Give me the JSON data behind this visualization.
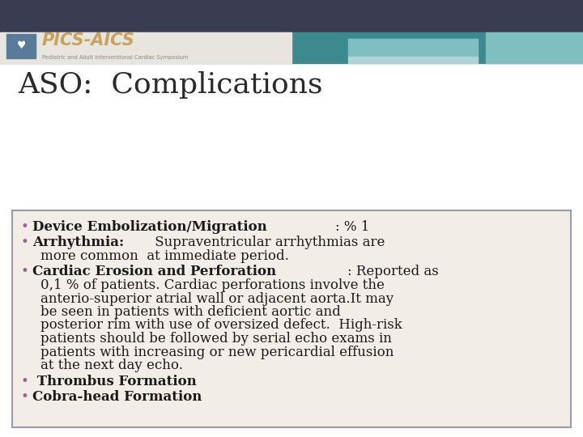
{
  "title": "ASO:  Complications",
  "title_fontsize": 26,
  "title_color": "#2a2a2a",
  "title_font": "serif",
  "bg_color": "#ffffff",
  "header_dark_color": "#3a3d52",
  "header_teal_color": "#3d8a8e",
  "header_light_teal": "#7fbfc2",
  "header_pale": "#b0d4d6",
  "box_bg_color": "#f3ede8",
  "box_border_color": "#9a9aaa",
  "bullet_color": "#1a1a1a",
  "bullet_dot_color": "#a060a0",
  "bullet_items": [
    {
      "bold_part": "Device Embolization/Migration",
      "normal_part": ": % 1",
      "continuation": []
    },
    {
      "bold_part": "Arrhythmia:",
      "normal_part": " Supraventricular arrhythmias are",
      "continuation": [
        "more common  at immediate period."
      ]
    },
    {
      "bold_part": "Cardiac Erosion and Perforation",
      "normal_part": ": Reported as",
      "continuation": [
        "0,1 % of patients. Cardiac perforations involve the",
        "anterio-superior atrial wall or adjacent aorta.It may",
        "be seen in patients with deficient aortic and",
        "posterior rim with use of oversized defect.  High-risk",
        "patients should be followed by serial echo exams in",
        "patients with increasing or new pericardial effusion",
        "at the next day echo."
      ]
    },
    {
      "bold_part": " Thrombus Formation",
      "normal_part": "",
      "continuation": []
    },
    {
      "bold_part": "Cobra-head Formation",
      "normal_part": "",
      "continuation": []
    }
  ],
  "font_size_bullet": 12,
  "logo_text": "PICS-AICS",
  "logo_sub": "Pediatric and Adult Interventional Cardiac Symposium"
}
